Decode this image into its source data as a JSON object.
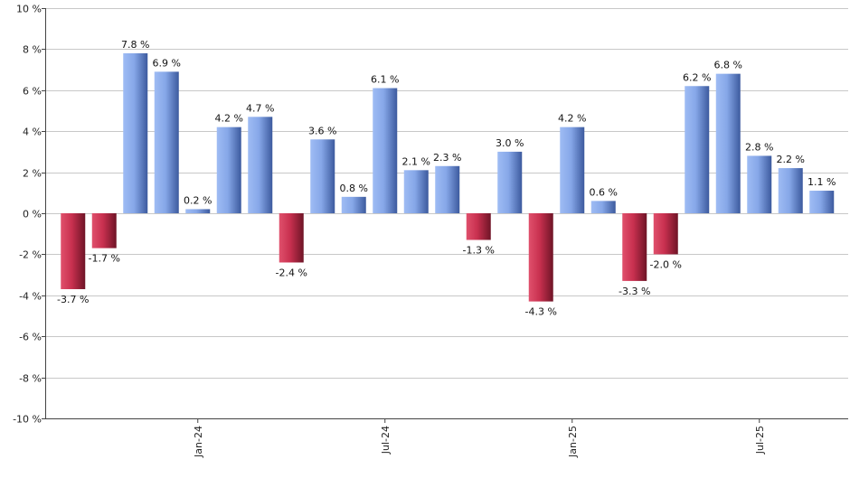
{
  "chart_data": {
    "type": "bar",
    "title": "",
    "xlabel": "",
    "ylabel": "",
    "ylim": [
      -10,
      10
    ],
    "y_ticks": [
      10,
      8,
      6,
      4,
      2,
      0,
      -2,
      -4,
      -6,
      -8,
      -10
    ],
    "y_tick_labels": [
      "10 %",
      "8 %",
      "6 %",
      "4 %",
      "2 %",
      "0 %",
      "-2 %",
      "-4 %",
      "-6 %",
      "-8 %",
      "-10 %"
    ],
    "x_tick_labels": [
      {
        "label": "Jan-24",
        "index": 4
      },
      {
        "label": "Jul-24",
        "index": 10
      },
      {
        "label": "Jan-25",
        "index": 16
      },
      {
        "label": "Jul-25",
        "index": 22
      }
    ],
    "grid": true,
    "colors": {
      "positive": "#7da1e6",
      "negative": "#c8304f"
    },
    "values": [
      -3.7,
      -1.7,
      7.8,
      6.9,
      0.2,
      4.2,
      4.7,
      -2.4,
      3.6,
      0.8,
      6.1,
      2.1,
      2.3,
      -1.3,
      3.0,
      -4.3,
      4.2,
      0.6,
      -3.3,
      -2.0,
      6.2,
      6.8,
      2.8,
      2.2,
      1.1
    ],
    "data_labels": [
      "-3.7 %",
      "-1.7 %",
      "7.8 %",
      "6.9 %",
      "0.2 %",
      "4.2 %",
      "4.7 %",
      "-2.4 %",
      "3.6 %",
      "0.8 %",
      "6.1 %",
      "2.1 %",
      "2.3 %",
      "-1.3 %",
      "3.0 %",
      "-4.3 %",
      "4.2 %",
      "0.6 %",
      "-3.3 %",
      "-2.0 %",
      "6.2 %",
      "6.8 %",
      "2.8 %",
      "2.2 %",
      "1.1 %"
    ]
  }
}
